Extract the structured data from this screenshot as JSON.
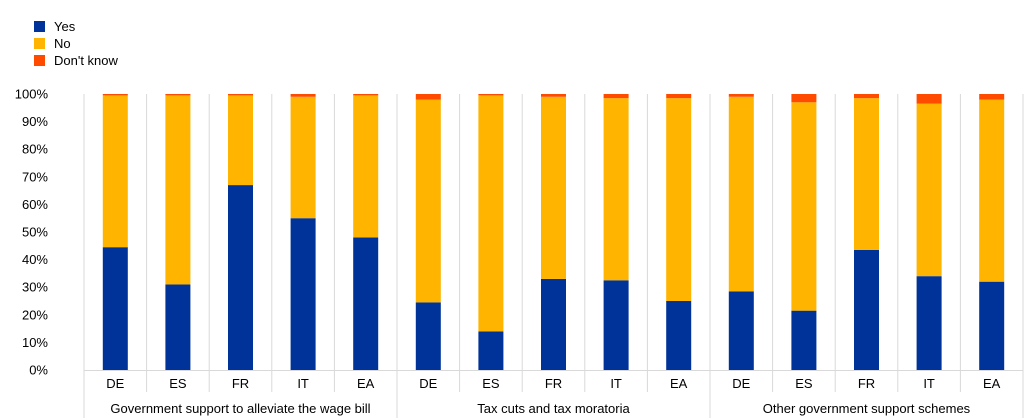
{
  "chart_data": {
    "type": "bar",
    "stacked": true,
    "percent_axis": true,
    "legend_placement": "top-left",
    "ylim": [
      0,
      100
    ],
    "yticks": [
      "0%",
      "10%",
      "20%",
      "30%",
      "40%",
      "50%",
      "60%",
      "70%",
      "80%",
      "90%",
      "100%"
    ],
    "groups": [
      {
        "label": "Government support to alleviate the wage bill",
        "categories": [
          "DE",
          "ES",
          "FR",
          "IT",
          "EA"
        ]
      },
      {
        "label": "Tax cuts and tax moratoria",
        "categories": [
          "DE",
          "ES",
          "FR",
          "IT",
          "EA"
        ]
      },
      {
        "label": "Other government support schemes",
        "categories": [
          "DE",
          "ES",
          "FR",
          "IT",
          "EA"
        ]
      }
    ],
    "series": [
      {
        "name": "Yes",
        "color": "#003399",
        "values": [
          44.5,
          31,
          67,
          55,
          48,
          24.5,
          14,
          33,
          32.5,
          25,
          28.5,
          21.5,
          43.5,
          34,
          32
        ]
      },
      {
        "name": "No",
        "color": "#FFB400",
        "values": [
          55,
          68.5,
          32.5,
          44,
          51.5,
          73.5,
          85.5,
          66,
          66,
          73.5,
          70.5,
          75.5,
          55,
          62.5,
          66
        ]
      },
      {
        "name": "Don't know",
        "color": "#FF4B00",
        "values": [
          0.5,
          0.5,
          0.5,
          1,
          0.5,
          2,
          0.5,
          1,
          1.5,
          1.5,
          1,
          3,
          1.5,
          3.5,
          2
        ]
      }
    ]
  }
}
